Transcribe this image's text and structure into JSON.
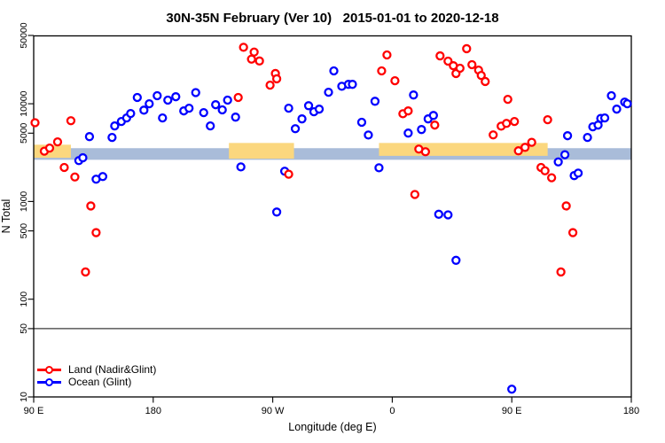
{
  "title": "30N-35N February (Ver 10)   2015-01-01 to 2020-12-18",
  "chart_data": {
    "type": "scatter",
    "title": "30N-35N February (Ver 10)   2015-01-01 to 2020-12-18",
    "xlabel": "Longitude (deg E)",
    "ylabel": "N Total",
    "x_axis": {
      "range": [
        90,
        540
      ],
      "tick_positions": [
        90,
        180,
        270,
        360,
        450,
        540
      ],
      "tick_labels": [
        "90 E",
        "180",
        "90 W",
        "0",
        "90 E",
        "180"
      ],
      "note": "longitude wraps past 180 (90E to 180 repeated)"
    },
    "y_axis": {
      "scale": "log10",
      "range": [
        10,
        50000
      ],
      "tick_values": [
        50000,
        10000,
        5000,
        1000,
        500,
        100,
        50,
        10
      ],
      "tick_labels": [
        "50000",
        "10000",
        "5000",
        "1000",
        "500",
        "100",
        "50",
        "10"
      ]
    },
    "reference_line": {
      "y": 50,
      "color": "#3a3a3a"
    },
    "bands": [
      {
        "name": "ocean-glint-band",
        "color": "#A9BCD9",
        "x_range": [
          90,
          540
        ],
        "y_range": [
          2670,
          3510
        ]
      },
      {
        "name": "land-season-band",
        "color": "#FBD77E",
        "x_range": [
          90,
          118
        ],
        "y_range": [
          2800,
          3810
        ]
      },
      {
        "name": "land-season-band",
        "color": "#FBD77E",
        "x_range": [
          237,
          286
        ],
        "y_range": [
          2740,
          3970
        ]
      },
      {
        "name": "land-season-band",
        "color": "#FBD77E",
        "x_range": [
          350,
          477
        ],
        "y_range": [
          2930,
          3970
        ]
      }
    ],
    "series": [
      {
        "name": "Land (Nadir&Glint)",
        "color": "#FF0000",
        "marker": "open-circle",
        "points": [
          [
            91,
            6400
          ],
          [
            98,
            3270
          ],
          [
            102,
            3520
          ],
          [
            108,
            4070
          ],
          [
            113,
            2230
          ],
          [
            118,
            6700
          ],
          [
            121,
            1780
          ],
          [
            129,
            190
          ],
          [
            133,
            900
          ],
          [
            137,
            480
          ],
          [
            244,
            11600
          ],
          [
            248,
            37800
          ],
          [
            254,
            28600
          ],
          [
            256,
            33800
          ],
          [
            260,
            27400
          ],
          [
            268,
            15500
          ],
          [
            272,
            20400
          ],
          [
            273,
            18000
          ],
          [
            282,
            1900
          ],
          [
            352,
            21700
          ],
          [
            356,
            31600
          ],
          [
            362,
            17200
          ],
          [
            368,
            7900
          ],
          [
            372,
            8450
          ],
          [
            377,
            1180
          ],
          [
            380,
            3440
          ],
          [
            385,
            3230
          ],
          [
            392,
            6050
          ],
          [
            396,
            30900
          ],
          [
            402,
            27300
          ],
          [
            406,
            24500
          ],
          [
            408,
            20400
          ],
          [
            411,
            23100
          ],
          [
            416,
            36600
          ],
          [
            420,
            25100
          ],
          [
            425,
            22100
          ],
          [
            427,
            19500
          ],
          [
            430,
            16900
          ],
          [
            436,
            4800
          ],
          [
            442,
            5900
          ],
          [
            446,
            6300
          ],
          [
            447,
            11100
          ],
          [
            452,
            6580
          ],
          [
            455,
            3300
          ],
          [
            460,
            3580
          ],
          [
            465,
            4030
          ],
          [
            472,
            2230
          ],
          [
            475,
            2060
          ],
          [
            477,
            6860
          ],
          [
            480,
            1750
          ],
          [
            487,
            190
          ],
          [
            491,
            900
          ],
          [
            496,
            480
          ]
        ]
      },
      {
        "name": "Ocean (Glint)",
        "color": "#0000FF",
        "marker": "open-circle",
        "points": [
          [
            124,
            2620
          ],
          [
            127,
            2800
          ],
          [
            132,
            4610
          ],
          [
            137,
            1690
          ],
          [
            142,
            1800
          ],
          [
            149,
            4520
          ],
          [
            151,
            5930
          ],
          [
            156,
            6580
          ],
          [
            160,
            7160
          ],
          [
            163,
            7940
          ],
          [
            168,
            11600
          ],
          [
            173,
            8600
          ],
          [
            177,
            10000
          ],
          [
            183,
            12100
          ],
          [
            187,
            7160
          ],
          [
            191,
            10900
          ],
          [
            197,
            11800
          ],
          [
            203,
            8450
          ],
          [
            207,
            9000
          ],
          [
            212,
            13000
          ],
          [
            218,
            8110
          ],
          [
            223,
            5930
          ],
          [
            227,
            9780
          ],
          [
            232,
            8660
          ],
          [
            236,
            10900
          ],
          [
            242,
            7300
          ],
          [
            246,
            2260
          ],
          [
            273,
            780
          ],
          [
            279,
            2040
          ],
          [
            282,
            9000
          ],
          [
            287,
            5560
          ],
          [
            292,
            7000
          ],
          [
            297,
            9550
          ],
          [
            301,
            8280
          ],
          [
            305,
            8810
          ],
          [
            312,
            13100
          ],
          [
            316,
            21700
          ],
          [
            322,
            15100
          ],
          [
            327,
            15800
          ],
          [
            330,
            15800
          ],
          [
            337,
            6460
          ],
          [
            342,
            4790
          ],
          [
            347,
            10600
          ],
          [
            350,
            2210
          ],
          [
            372,
            5010
          ],
          [
            376,
            12300
          ],
          [
            382,
            5450
          ],
          [
            387,
            7000
          ],
          [
            391,
            7590
          ],
          [
            395,
            740
          ],
          [
            402,
            730
          ],
          [
            408,
            250
          ],
          [
            450,
            12
          ],
          [
            485,
            2540
          ],
          [
            490,
            3010
          ],
          [
            492,
            4710
          ],
          [
            497,
            1840
          ],
          [
            500,
            1950
          ],
          [
            507,
            4520
          ],
          [
            511,
            5810
          ],
          [
            515,
            6050
          ],
          [
            517,
            7080
          ],
          [
            520,
            7160
          ],
          [
            525,
            12100
          ],
          [
            529,
            8810
          ],
          [
            535,
            10400
          ],
          [
            537,
            10000
          ]
        ]
      }
    ],
    "legend": {
      "position": "bottom-left",
      "items": [
        "Land (Nadir&Glint)",
        "Ocean (Glint)"
      ]
    }
  }
}
